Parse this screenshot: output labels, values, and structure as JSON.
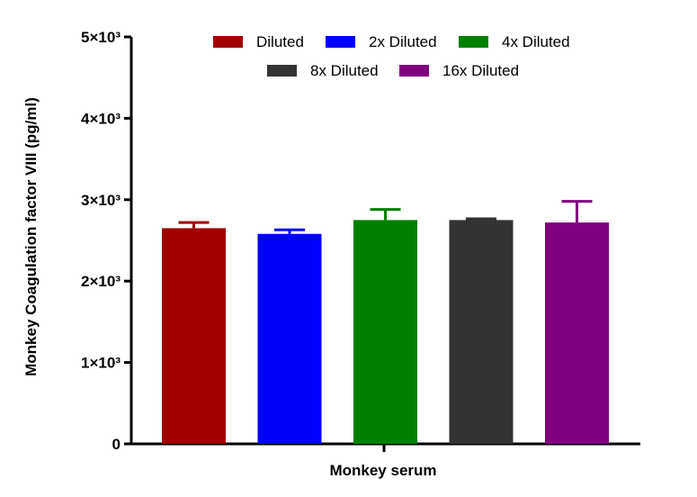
{
  "chart_data": {
    "type": "bar",
    "title": "",
    "xlabel": "Monkey serum",
    "ylabel": "Monkey Coagulation factor VIII (pg/ml)",
    "ylim": [
      0,
      5000
    ],
    "yticks": [
      {
        "value": 0,
        "label": "0"
      },
      {
        "value": 1000,
        "label": "1×10³"
      },
      {
        "value": 2000,
        "label": "2×10³"
      },
      {
        "value": 3000,
        "label": "3×10³"
      },
      {
        "value": 4000,
        "label": "4×10³"
      },
      {
        "value": 5000,
        "label": "5×10³"
      }
    ],
    "categories": [
      "Monkey serum"
    ],
    "grid": false,
    "legend_position": "top",
    "series": [
      {
        "name": "Diluted",
        "value": 2650,
        "error": 70,
        "color": "#a00000"
      },
      {
        "name": "2x Diluted",
        "value": 2580,
        "error": 50,
        "color": "#0000ff"
      },
      {
        "name": "4x Diluted",
        "value": 2750,
        "error": 130,
        "color": "#007f00"
      },
      {
        "name": "8x Diluted",
        "value": 2750,
        "error": 15,
        "color": "#333333"
      },
      {
        "name": "16x Diluted",
        "value": 2720,
        "error": 260,
        "color": "#800080"
      }
    ]
  }
}
